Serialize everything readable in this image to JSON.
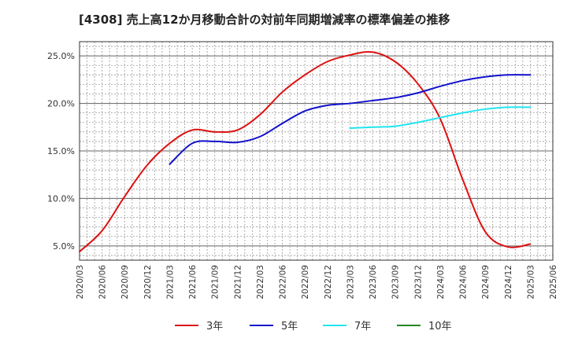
{
  "chart_data": {
    "type": "line",
    "title": "[4308]  売上高12か月移動合計の対前年同期増減率の標準偏差の推移",
    "xlabel": "",
    "ylabel": "",
    "ylim": [
      3.5,
      26.5
    ],
    "yticks": [
      5.0,
      10.0,
      15.0,
      20.0,
      25.0
    ],
    "ytick_labels": [
      "5.0%",
      "10.0%",
      "15.0%",
      "20.0%",
      "25.0%"
    ],
    "x_tick_labels": [
      "2020/03",
      "2020/06",
      "2020/09",
      "2020/12",
      "2021/03",
      "2021/06",
      "2021/09",
      "2021/12",
      "2022/03",
      "2022/06",
      "2022/09",
      "2022/12",
      "2023/03",
      "2023/06",
      "2023/09",
      "2023/12",
      "2024/03",
      "2024/06",
      "2024/09",
      "2024/12",
      "2025/03",
      "2025/06"
    ],
    "grid": true,
    "legend_position": "bottom",
    "series": [
      {
        "name": "3年",
        "color": "#dd1111",
        "values": [
          [
            "2020/03",
            4.4
          ],
          [
            "2020/06",
            6.6
          ],
          [
            "2020/09",
            10.2
          ],
          [
            "2020/12",
            13.5
          ],
          [
            "2021/03",
            15.8
          ],
          [
            "2021/06",
            17.2
          ],
          [
            "2021/09",
            17.0
          ],
          [
            "2021/12",
            17.2
          ],
          [
            "2022/03",
            18.8
          ],
          [
            "2022/06",
            21.2
          ],
          [
            "2022/09",
            23.0
          ],
          [
            "2022/12",
            24.4
          ],
          [
            "2023/03",
            25.1
          ],
          [
            "2023/06",
            25.4
          ],
          [
            "2023/09",
            24.4
          ],
          [
            "2023/12",
            22.1
          ],
          [
            "2024/03",
            18.4
          ],
          [
            "2024/06",
            12.0
          ],
          [
            "2024/09",
            6.5
          ],
          [
            "2024/12",
            4.9
          ],
          [
            "2025/03",
            5.2
          ]
        ]
      },
      {
        "name": "5年",
        "color": "#1111cc",
        "values": [
          [
            "2021/03",
            13.6
          ],
          [
            "2021/06",
            15.8
          ],
          [
            "2021/09",
            16.0
          ],
          [
            "2021/12",
            15.9
          ],
          [
            "2022/03",
            16.5
          ],
          [
            "2022/06",
            17.9
          ],
          [
            "2022/09",
            19.2
          ],
          [
            "2022/12",
            19.8
          ],
          [
            "2023/03",
            20.0
          ],
          [
            "2023/06",
            20.3
          ],
          [
            "2023/09",
            20.6
          ],
          [
            "2023/12",
            21.1
          ],
          [
            "2024/03",
            21.8
          ],
          [
            "2024/06",
            22.4
          ],
          [
            "2024/09",
            22.8
          ],
          [
            "2024/12",
            23.0
          ],
          [
            "2025/03",
            23.0
          ]
        ]
      },
      {
        "name": "7年",
        "color": "#22e5ee",
        "values": [
          [
            "2023/03",
            17.4
          ],
          [
            "2023/06",
            17.5
          ],
          [
            "2023/09",
            17.6
          ],
          [
            "2023/12",
            18.0
          ],
          [
            "2024/03",
            18.5
          ],
          [
            "2024/06",
            19.0
          ],
          [
            "2024/09",
            19.4
          ],
          [
            "2024/12",
            19.6
          ],
          [
            "2025/03",
            19.6
          ]
        ]
      },
      {
        "name": "10年",
        "color": "#228822",
        "values": []
      }
    ]
  }
}
